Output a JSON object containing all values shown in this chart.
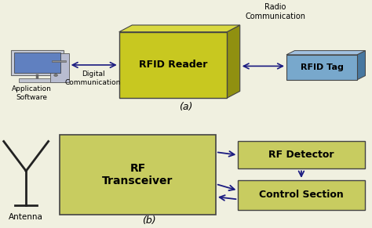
{
  "bg_color": "#f0f0e0",
  "olive_front": "#c8c820",
  "olive_side": "#909010",
  "olive_top": "#d8d840",
  "olive_light": "#d0d060",
  "blue_front": "#78a8cc",
  "blue_side": "#4878a0",
  "blue_top": "#a0c0e0",
  "green_box": "#c8cc60",
  "box_border": "#444444",
  "arrow_color": "#1a1a80",
  "text_color": "#000000",
  "label_a": "(a)",
  "label_b": "(b)",
  "rfid_reader_label": "RFID Reader",
  "rfid_tag_label": "RFID Tag",
  "rf_transceiver_label": "RF\nTransceiver",
  "rf_detector_label": "RF Detector",
  "control_section_label": "Control Section",
  "radio_comm_label": "Radio\nCommunication",
  "digital_comm_label": "Digital\nCommunication",
  "app_software_label": "Application\nSoftware",
  "antenna_label": "Antenna"
}
